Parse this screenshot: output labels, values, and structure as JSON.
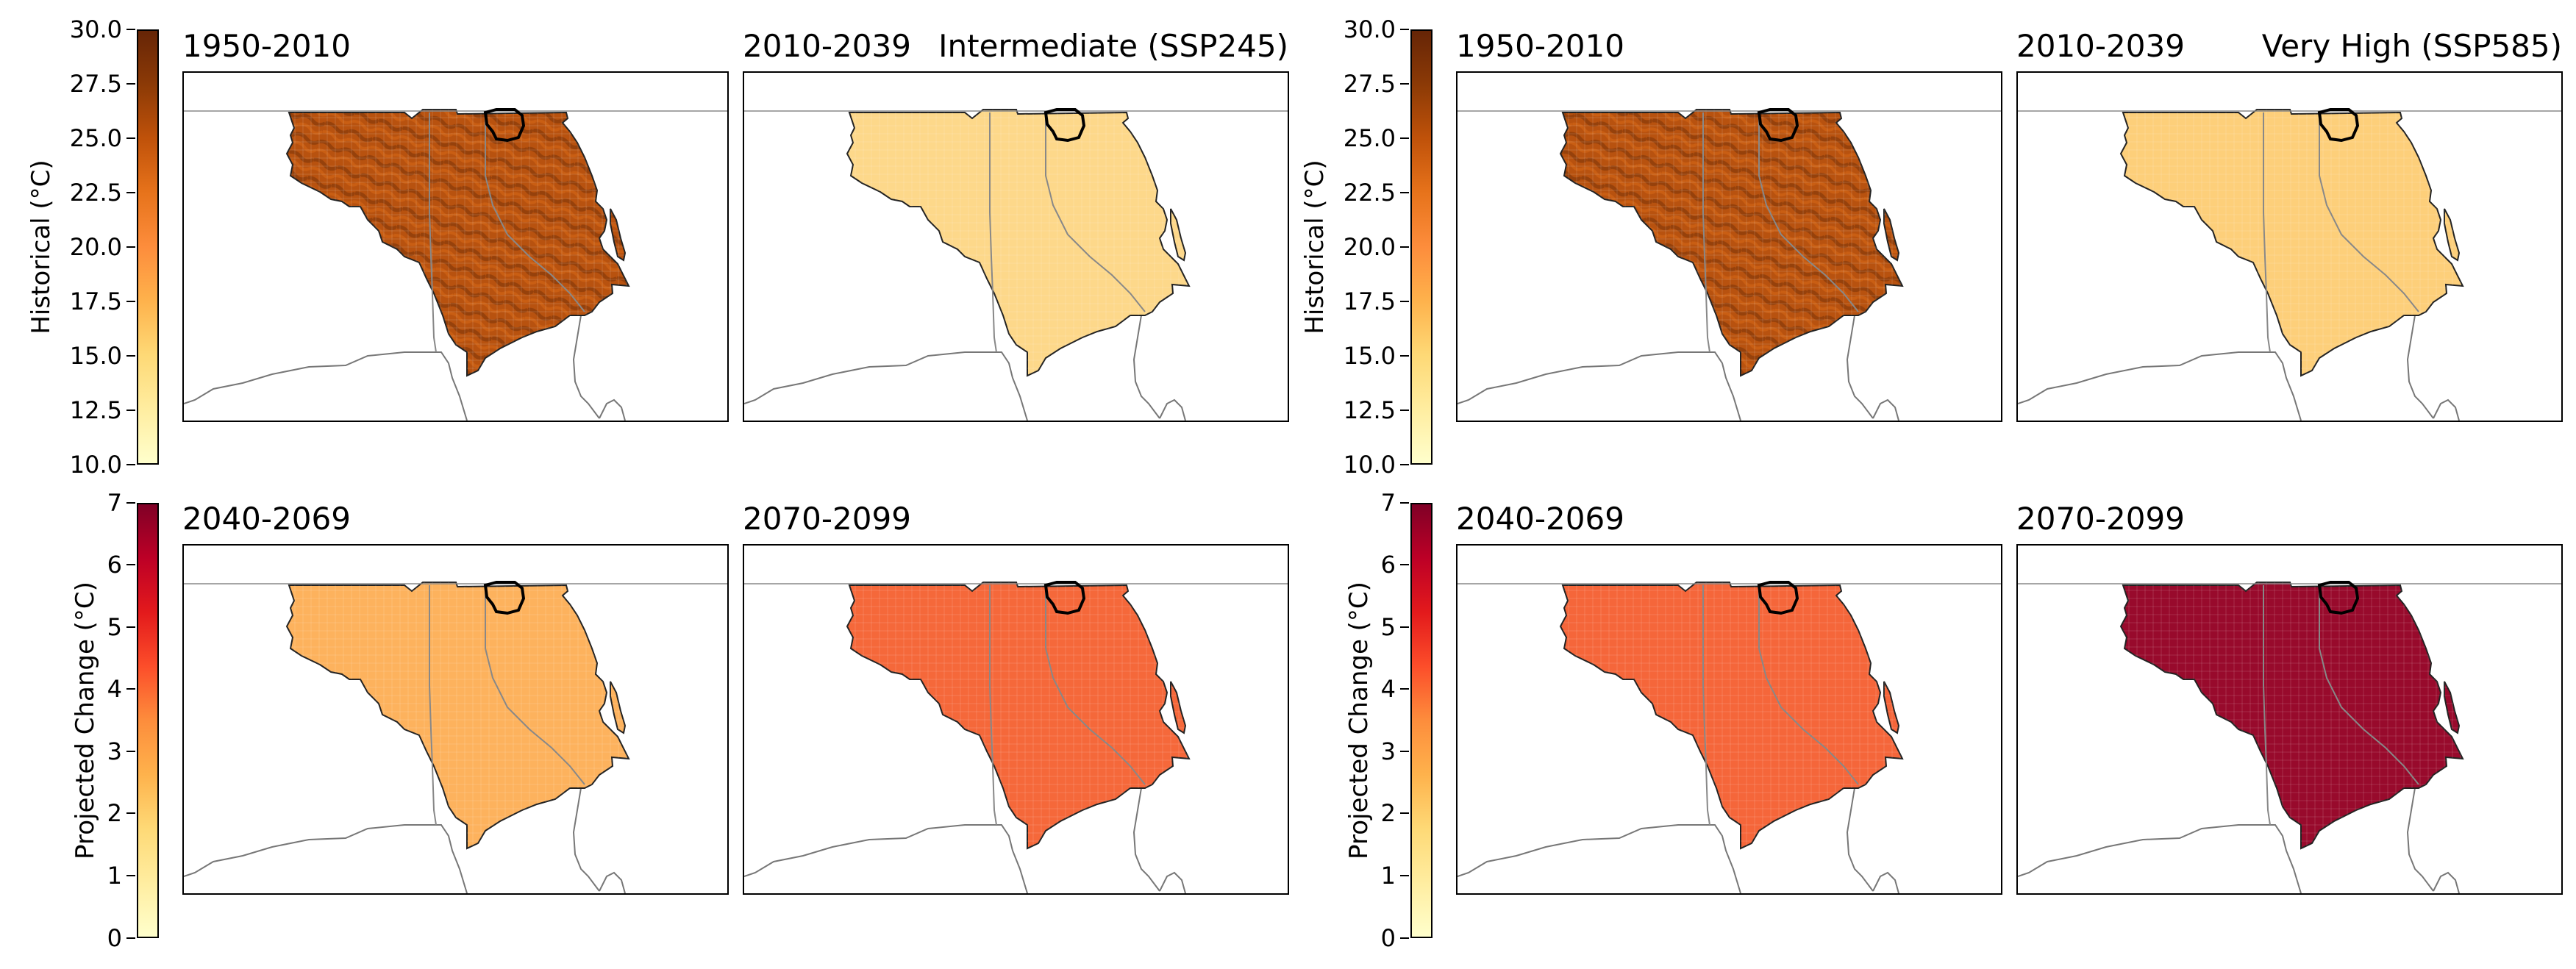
{
  "colorbars": {
    "historical": {
      "label": "Historical (°C)",
      "ticks": [
        "30.0",
        "27.5",
        "25.0",
        "22.5",
        "20.0",
        "17.5",
        "15.0",
        "12.5",
        "10.0"
      ],
      "range": [
        10.0,
        30.0
      ]
    },
    "change": {
      "label": "Projected Change (°C)",
      "ticks": [
        "7",
        "6",
        "5",
        "4",
        "3",
        "2",
        "1",
        "0"
      ],
      "range": [
        0,
        7
      ]
    }
  },
  "groups": [
    {
      "scenario": "Intermediate (SSP245)",
      "panels": [
        {
          "period": "1950-2010",
          "fill": "#b8520f",
          "texture": true
        },
        {
          "period": "2010-2039",
          "fill": "#fdd88a",
          "texture": false
        },
        {
          "period": "2040-2069",
          "fill": "#fdb25d",
          "texture": false
        },
        {
          "period": "2070-2099",
          "fill": "#f5683a",
          "texture": false
        }
      ]
    },
    {
      "scenario": "Very High (SSP585)",
      "panels": [
        {
          "period": "1950-2010",
          "fill": "#b8520f",
          "texture": true
        },
        {
          "period": "2010-2039",
          "fill": "#fdcf7a",
          "texture": false
        },
        {
          "period": "2040-2069",
          "fill": "#f5663a",
          "texture": false
        },
        {
          "period": "2070-2099",
          "fill": "#980a2c",
          "texture": false
        }
      ]
    }
  ]
}
